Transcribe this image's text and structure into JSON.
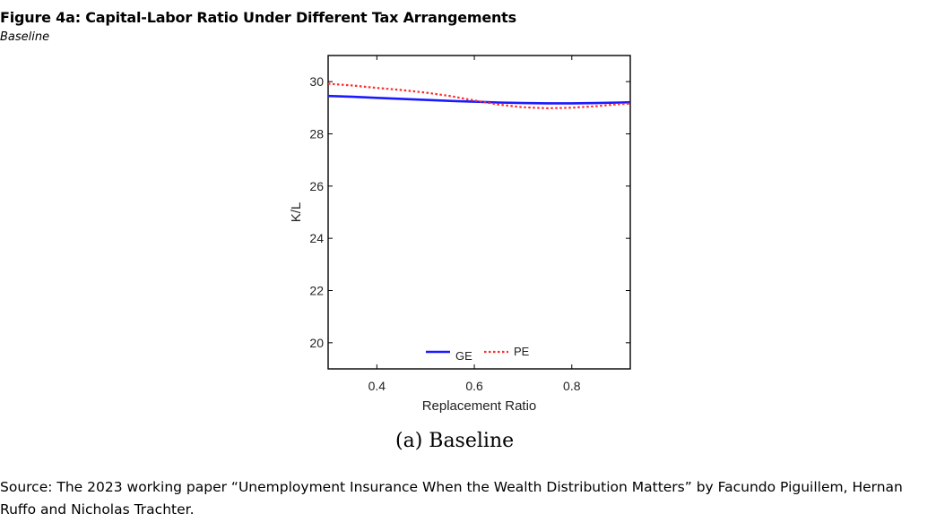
{
  "figure": {
    "title": "Figure 4a: Capital-Labor Ratio Under Different Tax Arrangements",
    "subtitle": "Baseline",
    "panel_caption": "(a) Baseline",
    "source": "Source: The 2023 working paper “Unemployment Insurance When the Wealth Distribution Matters” by Facundo Piguillem, Hernan Ruffo and Nicholas Trachter."
  },
  "chart_data": {
    "type": "line",
    "title": "",
    "xlabel": "Replacement Ratio",
    "ylabel": "K/L",
    "xlim": [
      0.3,
      0.92
    ],
    "ylim": [
      19.0,
      31.0
    ],
    "xticks": [
      0.4,
      0.6,
      0.8
    ],
    "xtick_labels": [
      "0.4",
      "0.6",
      "0.8"
    ],
    "yticks": [
      20,
      22,
      24,
      26,
      28,
      30
    ],
    "ytick_labels": [
      "20",
      "22",
      "24",
      "26",
      "28",
      "30"
    ],
    "grid": false,
    "legend": {
      "position": "bottom-center",
      "orientation": "horizontal"
    },
    "series": [
      {
        "name": "GE",
        "color": "#1a1aff",
        "style": "solid",
        "x": [
          0.3,
          0.35,
          0.4,
          0.45,
          0.5,
          0.55,
          0.6,
          0.65,
          0.7,
          0.75,
          0.8,
          0.85,
          0.9,
          0.92
        ],
        "y": [
          29.45,
          29.42,
          29.38,
          29.34,
          29.3,
          29.26,
          29.23,
          29.2,
          29.18,
          29.17,
          29.17,
          29.18,
          29.2,
          29.21
        ]
      },
      {
        "name": "PE",
        "color": "#ff2a2a",
        "style": "dotted",
        "x": [
          0.3,
          0.35,
          0.4,
          0.45,
          0.5,
          0.55,
          0.6,
          0.65,
          0.7,
          0.75,
          0.8,
          0.85,
          0.9,
          0.92
        ],
        "y": [
          29.92,
          29.85,
          29.76,
          29.68,
          29.58,
          29.45,
          29.28,
          29.12,
          29.02,
          28.98,
          29.0,
          29.06,
          29.14,
          29.16
        ]
      }
    ]
  }
}
